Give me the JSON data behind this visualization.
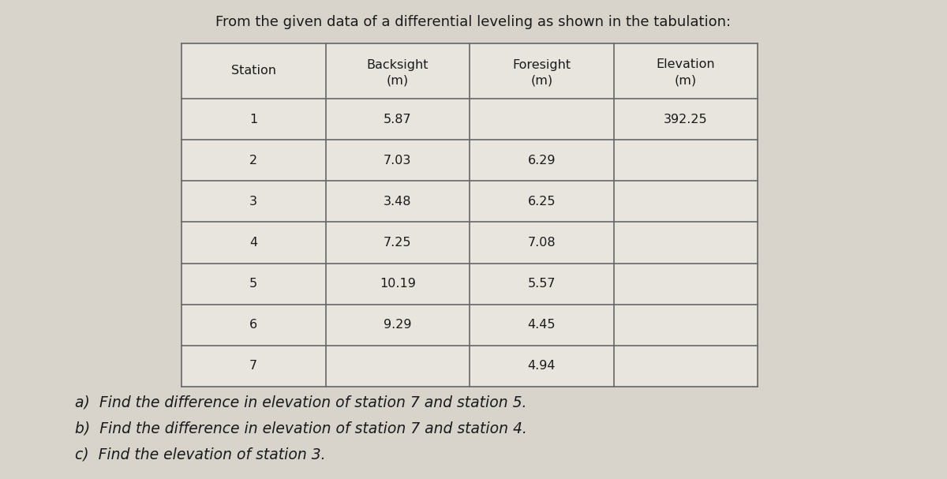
{
  "title": "From the given data of a differential leveling as shown in the tabulation:",
  "stations": [
    "1",
    "2",
    "3",
    "4",
    "5",
    "6",
    "7"
  ],
  "backsight": [
    "5.87",
    "7.03",
    "3.48",
    "7.25",
    "10.19",
    "9.29",
    ""
  ],
  "foresight": [
    "",
    "6.29",
    "6.25",
    "7.08",
    "5.57",
    "4.45",
    "4.94"
  ],
  "elevation": [
    "392.25",
    "",
    "",
    "",
    "",
    "",
    ""
  ],
  "headers_line1": [
    "Station",
    "Backsight",
    "Foresight",
    "Elevation"
  ],
  "headers_line2": [
    "",
    "(m)",
    "(m)",
    "(m)"
  ],
  "questions": [
    "a)  Find the difference in elevation of station 7 and station 5.",
    "b)  Find the difference in elevation of station 7 and station 4.",
    "c)  Find the elevation of station 3."
  ],
  "bg_color": "#d8d4cc",
  "table_bg": "#e8e5de",
  "line_color": "#666666",
  "text_color": "#1a1a1a",
  "title_fontsize": 13.0,
  "header_fontsize": 11.5,
  "cell_fontsize": 11.5,
  "question_fontsize": 13.5,
  "fig_width": 12.0,
  "fig_height": 6.07
}
